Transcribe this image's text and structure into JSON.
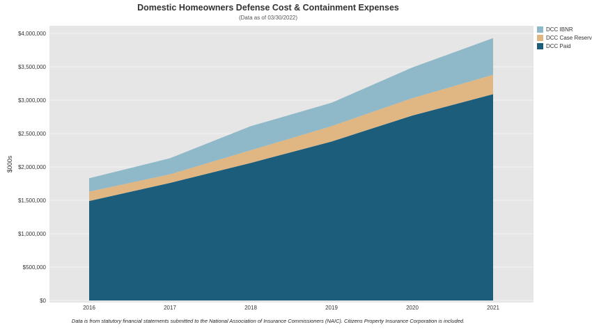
{
  "colors": {
    "ibnr": "#8fb9c9",
    "case": "#e0b683",
    "paid": "#1b5d7b",
    "plot_bg": "#e6e6e6",
    "grid": "#f4f4f4"
  },
  "chart_data": {
    "type": "area",
    "stacked": true,
    "title": "Domestic Homeowners Defense Cost & Containment Expenses",
    "subtitle": "(Data as of 03/30/2022)",
    "footer": "Data is from statutory financial statements submitted to the National Association of Insurance Commissioners (NAIC). Citizens Property Insurance Corporation is included.",
    "ylabel": "$000s",
    "xlabel": "",
    "categories": [
      "2016",
      "2017",
      "2018",
      "2019",
      "2020",
      "2021"
    ],
    "ylim": [
      0,
      4000000
    ],
    "yticks": [
      0,
      500000,
      1000000,
      1500000,
      2000000,
      2500000,
      3000000,
      3500000,
      4000000
    ],
    "ytick_labels": [
      "$0",
      "$500,000",
      "$1,000,000",
      "$1,500,000",
      "$2,000,000",
      "$2,500,000",
      "$3,000,000",
      "$3,500,000",
      "$4,000,000"
    ],
    "grid": true,
    "legend_position": "top-right",
    "series": [
      {
        "name": "DCC Paid",
        "color_key": "paid",
        "values": [
          1490000,
          1760000,
          2060000,
          2380000,
          2770000,
          3090000
        ]
      },
      {
        "name": "DCC Case Reserves",
        "color_key": "case",
        "values": [
          140000,
          130000,
          190000,
          230000,
          260000,
          290000
        ]
      },
      {
        "name": "DCC IBNR",
        "color_key": "ibnr",
        "values": [
          200000,
          240000,
          360000,
          350000,
          460000,
          550000
        ]
      }
    ],
    "legend_order": [
      "DCC IBNR",
      "DCC Case Reserves",
      "DCC Paid"
    ]
  }
}
